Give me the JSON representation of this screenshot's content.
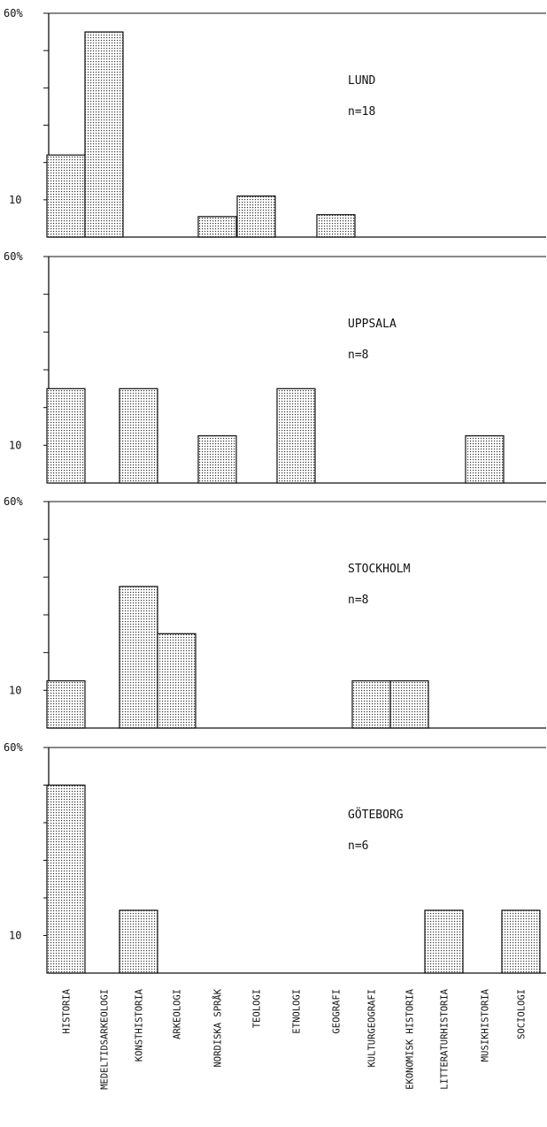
{
  "categories": [
    "HISTORIA",
    "MEDELTIDSARKEOLOGI",
    "KONSTHISTORIA",
    "ARKEOLOGI",
    "NORDISKA SPRÅK",
    "TEOLOGI",
    "ETNOLOGI",
    "GEOGRAFI",
    "KULTURGEOGRAFI",
    "EKONOMISK HISTORIA",
    "LITTERATURHISTORIA",
    "MUSIKHISTORIA",
    "SOCIOLOGI"
  ],
  "chart_data": [
    {
      "type": "bar",
      "title": "LUND",
      "subtitle": "n=18",
      "ytick_top": "60%",
      "ytick_low": "10",
      "ylim": [
        0,
        60
      ],
      "categories": [
        "HISTORIA",
        "MEDELTIDSARKEOLOGI",
        "KONSTHISTORIA",
        "ARKEOLOGI",
        "NORDISKA SPRÅK",
        "TEOLOGI",
        "ETNOLOGI",
        "GEOGRAFI",
        "KULTURGEOGRAFI",
        "EKONOMISK HISTORIA",
        "LITTERATURHISTORIA",
        "MUSIKHISTORIA",
        "SOCIOLOGI"
      ],
      "values": [
        22,
        55,
        0,
        0,
        5.5,
        11,
        0,
        6,
        0,
        0,
        0,
        0,
        0
      ]
    },
    {
      "type": "bar",
      "title": "UPPSALA",
      "subtitle": "n=8",
      "ytick_top": "60%",
      "ytick_low": "10",
      "ylim": [
        0,
        60
      ],
      "categories": [
        "HISTORIA",
        "MEDELTIDSARKEOLOGI",
        "KONSTHISTORIA",
        "ARKEOLOGI",
        "NORDISKA SPRÅK",
        "TEOLOGI",
        "ETNOLOGI",
        "GEOGRAFI",
        "KULTURGEOGRAFI",
        "EKONOMISK HISTORIA",
        "LITTERATURHISTORIA",
        "MUSIKHISTORIA",
        "SOCIOLOGI"
      ],
      "values": [
        25,
        0,
        25,
        0,
        12.5,
        0,
        25,
        0,
        0,
        0,
        0,
        12.5,
        0
      ]
    },
    {
      "type": "bar",
      "title": "STOCKHOLM",
      "subtitle": "n=8",
      "ytick_top": "60%",
      "ytick_low": "10",
      "ylim": [
        0,
        60
      ],
      "categories": [
        "HISTORIA",
        "MEDELTIDSARKEOLOGI",
        "KONSTHISTORIA",
        "ARKEOLOGI",
        "NORDISKA SPRÅK",
        "TEOLOGI",
        "ETNOLOGI",
        "GEOGRAFI",
        "KULTURGEOGRAFI",
        "EKONOMISK HISTORIA",
        "LITTERATURHISTORIA",
        "MUSIKHISTORIA",
        "SOCIOLOGI"
      ],
      "values": [
        12.5,
        0,
        37.5,
        25,
        0,
        0,
        0,
        0,
        12.5,
        12.5,
        0,
        0,
        0
      ]
    },
    {
      "type": "bar",
      "title": "GÖTEBORG",
      "subtitle": "n=6",
      "ytick_top": "60%",
      "ytick_low": "10",
      "ylim": [
        0,
        60
      ],
      "categories": [
        "HISTORIA",
        "MEDELTIDSARKEOLOGI",
        "KONSTHISTORIA",
        "ARKEOLOGI",
        "NORDISKA SPRÅK",
        "TEOLOGI",
        "ETNOLOGI",
        "GEOGRAFI",
        "KULTURGEOGRAFI",
        "EKONOMISK HISTORIA",
        "LITTERATURHISTORIA",
        "MUSIKHISTORIA",
        "SOCIOLOGI"
      ],
      "values": [
        50,
        0,
        16.7,
        0,
        0,
        0,
        0,
        0,
        0,
        0,
        16.7,
        0,
        16.7
      ]
    }
  ]
}
